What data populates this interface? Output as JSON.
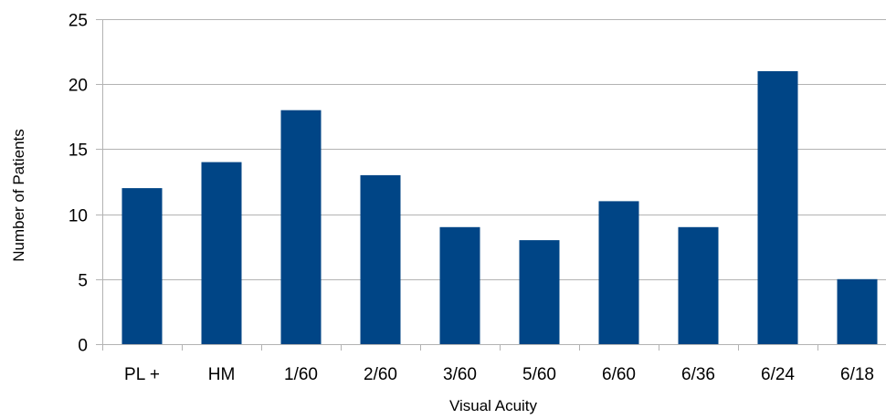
{
  "chart_data": {
    "type": "bar",
    "categories": [
      "PL +",
      "HM",
      "1/60",
      "2/60",
      "3/60",
      "5/60",
      "6/60",
      "6/36",
      "6/24",
      "6/18"
    ],
    "values": [
      12,
      14,
      18,
      13,
      9,
      8,
      11,
      9,
      21,
      5
    ],
    "title": "",
    "xlabel": "Visual Acuity",
    "ylabel": "Number of Patients",
    "ylim": [
      0,
      25
    ],
    "yticks": [
      0,
      5,
      10,
      15,
      20,
      25
    ],
    "grid": true,
    "legend": "none",
    "bar_color": "#004586",
    "grid_color": "#b3b3b3"
  }
}
